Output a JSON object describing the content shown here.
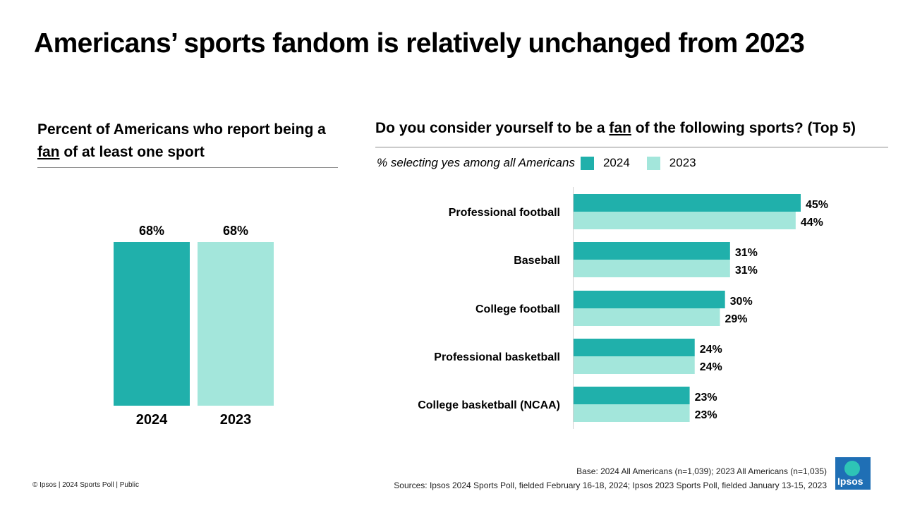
{
  "title": "Americans’ sports fandom is relatively unchanged from 2023",
  "colors": {
    "y2024": "#20b0ab",
    "y2023": "#a3e6db",
    "rule": "#8a8a8a"
  },
  "chart_data": [
    {
      "type": "bar",
      "title_parts": [
        "Percent of Americans who report being a ",
        "fan",
        " of at least one sport"
      ],
      "categories": [
        "2024",
        "2023"
      ],
      "values": [
        68,
        68
      ],
      "value_labels": [
        "68%",
        "68%"
      ],
      "ylim": [
        0,
        68
      ]
    },
    {
      "type": "bar",
      "orientation": "horizontal",
      "title_parts": [
        "Do you consider yourself to be a ",
        "fan",
        " of the following sports? (Top 5)"
      ],
      "subtitle": "% selecting yes among all Americans",
      "categories": [
        "Professional football",
        "Baseball",
        "College football",
        "Professional basketball",
        "College basketball (NCAA)"
      ],
      "series": [
        {
          "name": "2024",
          "values": [
            45,
            31,
            30,
            24,
            23
          ],
          "labels": [
            "45%",
            "31%",
            "30%",
            "24%",
            "23%"
          ]
        },
        {
          "name": "2023",
          "values": [
            44,
            31,
            29,
            24,
            23
          ],
          "labels": [
            "44%",
            "31%",
            "29%",
            "24%",
            "23%"
          ]
        }
      ],
      "xlim": [
        0,
        45
      ],
      "legend": "top-left"
    }
  ],
  "footer": {
    "left": "© Ipsos | 2024 Sports Poll | Public",
    "base": "Base: 2024 All Americans (n=1,039); 2023 All Americans (n=1,035)",
    "sources": "Sources: Ipsos 2024 Sports Poll, fielded February 16-18, 2024; Ipsos 2023 Sports Poll, fielded January 13-15, 2023",
    "logo": "Ipsos"
  }
}
